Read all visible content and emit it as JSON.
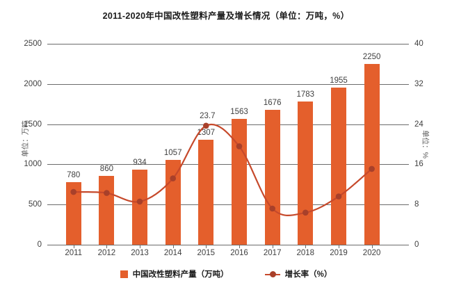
{
  "title": "2011-2020年中国改性塑料产量及增长情况（单位：万吨，%）",
  "left_axis": {
    "title": "单位：万吨",
    "ticks": [
      "0",
      "500",
      "1000",
      "1500",
      "2000",
      "2500"
    ],
    "min": 0,
    "max": 2500
  },
  "right_axis": {
    "title": "单位：%",
    "ticks": [
      "0",
      "8",
      "16",
      "24",
      "32",
      "40"
    ],
    "min": 0,
    "max": 40
  },
  "legend": {
    "bar_label": "中国改性塑料产量（万吨）",
    "line_label": "增长率（%）"
  },
  "colors": {
    "bar": "#E45F2C",
    "line": "#C6492B",
    "marker": "#A8402A",
    "grid": "#6b6b6b",
    "tick_text": "#404040",
    "title_text": "#1a1a1a"
  },
  "chart_data": {
    "type": "bar",
    "subtype": "bar-line-combo",
    "title": "2011-2020年中国改性塑料产量及增长情况（单位：万吨，%）",
    "categories": [
      "2011",
      "2012",
      "2013",
      "2014",
      "2015",
      "2016",
      "2017",
      "2018",
      "2019",
      "2020"
    ],
    "series": [
      {
        "name": "中国改性塑料产量（万吨）",
        "type": "bar",
        "y_axis": "left",
        "values": [
          780,
          860,
          934,
          1057,
          1307,
          1563,
          1676,
          1783,
          1955,
          2250
        ],
        "data_labels": [
          "780",
          "860",
          "934",
          "1057",
          "1307",
          "1563",
          "1676",
          "1783",
          "1955",
          "2250"
        ]
      },
      {
        "name": "增长率（%）",
        "type": "line",
        "y_axis": "right",
        "smooth": true,
        "values": [
          10.5,
          10.3,
          8.6,
          13.2,
          23.7,
          19.6,
          7.2,
          6.4,
          9.6,
          15.1
        ],
        "point_labels": {
          "2015": "23.7"
        }
      }
    ],
    "left_ylim": [
      0,
      2500
    ],
    "right_ylim": [
      0,
      40
    ],
    "grid": "horizontal",
    "legend_position": "bottom"
  }
}
